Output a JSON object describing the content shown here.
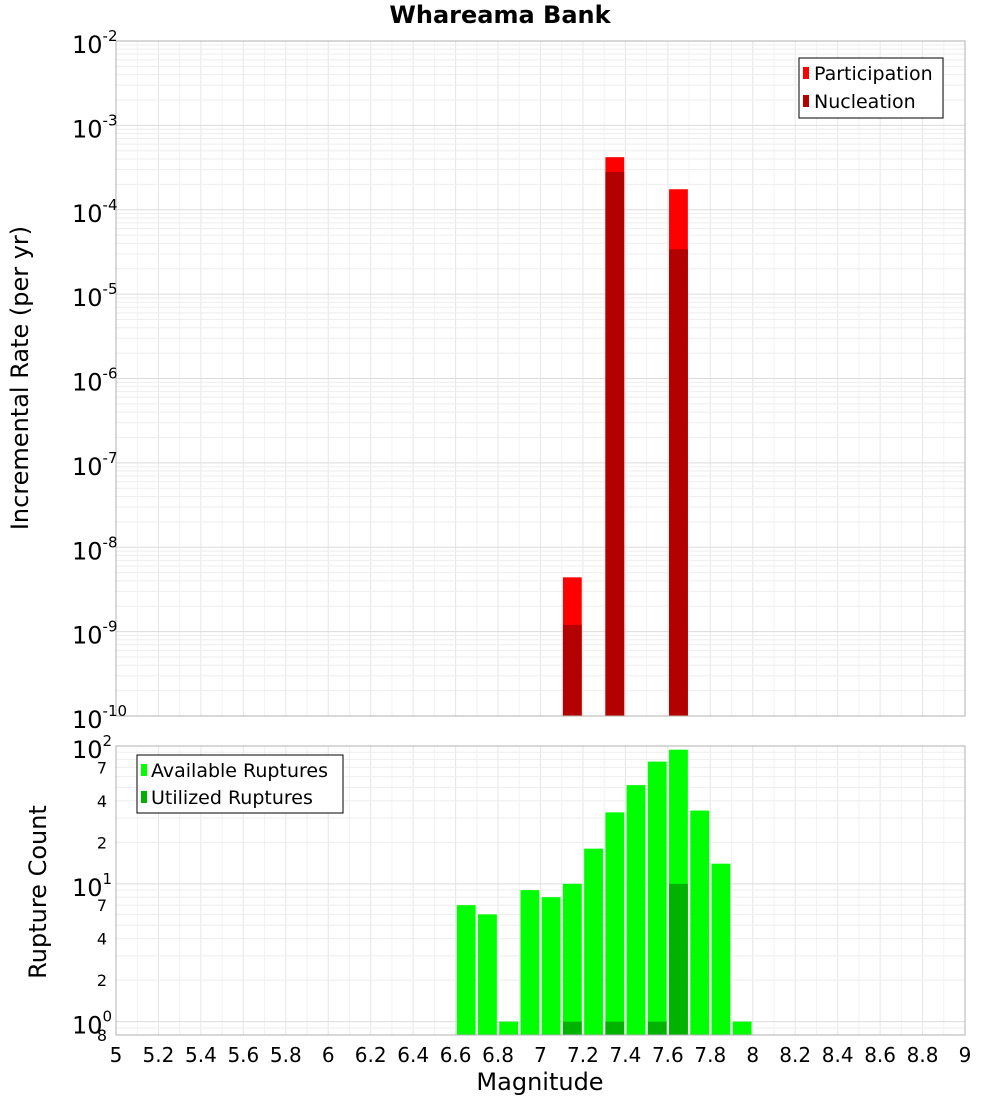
{
  "chart_data": [
    {
      "type": "bar",
      "title": "Whareama Bank",
      "xlabel": "",
      "ylabel": "Incremental Rate (per yr)",
      "yscale": "log",
      "ylim": [
        1e-10,
        0.01
      ],
      "xlim": [
        5,
        9
      ],
      "grid": true,
      "legend_position": "top-right",
      "y_tick_labels": [
        {
          "base": "10",
          "exp": "-10"
        },
        {
          "base": "10",
          "exp": "-9"
        },
        {
          "base": "10",
          "exp": "-8"
        },
        {
          "base": "10",
          "exp": "-7"
        },
        {
          "base": "10",
          "exp": "-6"
        },
        {
          "base": "10",
          "exp": "-5"
        },
        {
          "base": "10",
          "exp": "-4"
        },
        {
          "base": "10",
          "exp": "-3"
        },
        {
          "base": "10",
          "exp": "-2"
        }
      ],
      "series": [
        {
          "name": "Participation",
          "color": "#ff0000",
          "x": [
            7.15,
            7.35,
            7.65
          ],
          "values": [
            4.4e-09,
            0.00042,
            0.000175
          ]
        },
        {
          "name": "Nucleation",
          "color": "#b30000",
          "x": [
            7.15,
            7.35,
            7.65
          ],
          "values": [
            1.2e-09,
            0.00028,
            3.4e-05
          ]
        }
      ]
    },
    {
      "type": "bar",
      "title": "",
      "xlabel": "Magnitude",
      "ylabel": "Rupture Count",
      "yscale": "log",
      "ylim": [
        0.8,
        100
      ],
      "xlim": [
        5,
        9
      ],
      "grid": true,
      "legend_position": "top-left",
      "x_tick_labels": [
        "5",
        "5.2",
        "5.4",
        "5.6",
        "5.8",
        "6",
        "6.2",
        "6.4",
        "6.6",
        "6.8",
        "7",
        "7.2",
        "7.4",
        "7.6",
        "7.8",
        "8",
        "8.2",
        "8.4",
        "8.6",
        "8.8",
        "9"
      ],
      "y_tick_labels": [
        {
          "base": "10",
          "exp": "0"
        },
        {
          "base": "10",
          "exp": "1"
        },
        {
          "base": "10",
          "exp": "2"
        }
      ],
      "y_minor_labels": [
        "8",
        "2",
        "4",
        "7",
        "2",
        "4",
        "7"
      ],
      "series": [
        {
          "name": "Available Ruptures",
          "color": "#00ff00",
          "x": [
            6.65,
            6.75,
            6.85,
            6.95,
            7.05,
            7.15,
            7.25,
            7.35,
            7.45,
            7.55,
            7.65,
            7.75,
            7.85,
            7.95
          ],
          "values": [
            7,
            6,
            1,
            9,
            8,
            10,
            18,
            33,
            52,
            77,
            94,
            34,
            14,
            1
          ]
        },
        {
          "name": "Utilized Ruptures",
          "color": "#00b300",
          "x": [
            7.15,
            7.35,
            7.55,
            7.65
          ],
          "values": [
            1,
            1,
            1,
            10
          ]
        }
      ]
    }
  ]
}
